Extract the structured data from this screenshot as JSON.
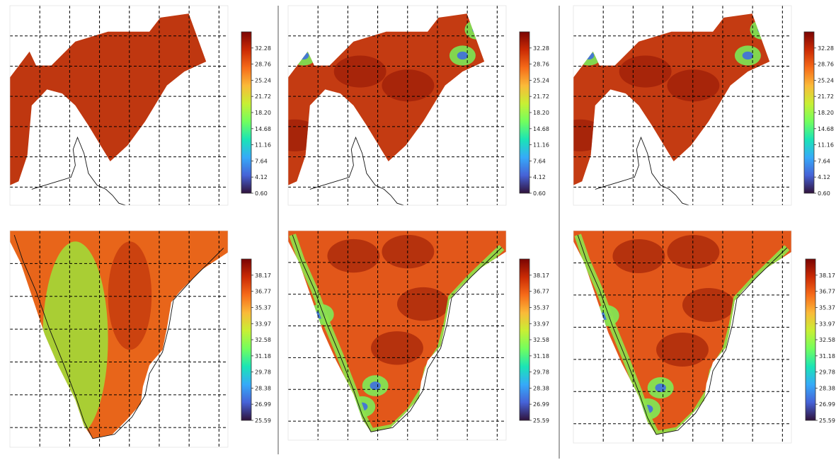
{
  "colors": {
    "grid": "#000000",
    "divider": "#555555",
    "colormap": [
      "#30123b",
      "#4662d7",
      "#36aaf9",
      "#1ae4b6",
      "#72fe5e",
      "#c8ef34",
      "#faba39",
      "#f66b19",
      "#ca2a04",
      "#7a0403"
    ]
  },
  "chart_data": [
    {
      "type": "heatmap",
      "panel": "top-left",
      "region": "northwest",
      "grid": true,
      "legend": "right",
      "colorbar": {
        "range": [
          0.6,
          35.8
        ],
        "ticks": [
          "32.28",
          "28.76",
          "25.24",
          "21.72",
          "18.20",
          "14.68",
          "11.16",
          "7.64",
          "4.12",
          "0.60"
        ]
      }
    },
    {
      "type": "heatmap",
      "panel": "top-middle",
      "region": "northwest",
      "grid": true,
      "legend": "right",
      "colorbar": {
        "range": [
          0.6,
          35.8
        ],
        "ticks": [
          "32.28",
          "28.76",
          "25.24",
          "21.72",
          "18.20",
          "14.68",
          "11.16",
          "7.64",
          "4.12",
          "0.60"
        ]
      }
    },
    {
      "type": "heatmap",
      "panel": "top-right",
      "region": "northwest",
      "grid": true,
      "legend": "right",
      "colorbar": {
        "range": [
          0.6,
          35.8
        ],
        "ticks": [
          "32.28",
          "28.76",
          "25.24",
          "21.72",
          "18.20",
          "14.68",
          "11.16",
          "7.64",
          "4.12",
          "0.60"
        ]
      }
    },
    {
      "type": "heatmap",
      "panel": "bottom-left",
      "region": "south",
      "grid": true,
      "legend": "right",
      "colorbar": {
        "range": [
          25.59,
          39.57
        ],
        "ticks": [
          "38.17",
          "36.77",
          "35.37",
          "33.97",
          "32.58",
          "31.18",
          "29.78",
          "28.38",
          "26.99",
          "25.59"
        ]
      }
    },
    {
      "type": "heatmap",
      "panel": "bottom-middle",
      "region": "south",
      "grid": true,
      "legend": "right",
      "colorbar": {
        "range": [
          25.59,
          39.57
        ],
        "ticks": [
          "38.17",
          "36.77",
          "35.37",
          "33.97",
          "32.58",
          "31.18",
          "29.78",
          "28.38",
          "26.99",
          "25.59"
        ]
      }
    },
    {
      "type": "heatmap",
      "panel": "bottom-right",
      "region": "south",
      "grid": true,
      "legend": "right",
      "colorbar": {
        "range": [
          25.59,
          39.57
        ],
        "ticks": [
          "38.17",
          "36.77",
          "35.37",
          "33.97",
          "32.58",
          "31.18",
          "29.78",
          "28.38",
          "26.99",
          "25.59"
        ]
      }
    }
  ]
}
